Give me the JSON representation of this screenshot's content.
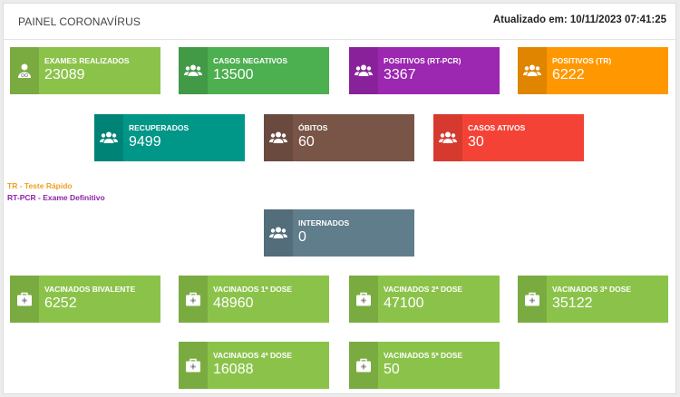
{
  "header": {
    "title": "PAINEL CORONAVÍRUS",
    "updated": "Atualizado em: 10/11/2023 07:41:25"
  },
  "cards": {
    "exames": {
      "label": "EXAMES REALIZADOS",
      "value": "23089",
      "color": "#8bc34a",
      "icon": "user-md-icon"
    },
    "negativos": {
      "label": "CASOS NEGATIVOS",
      "value": "13500",
      "color": "#4caf50",
      "icon": "users-icon"
    },
    "rtpcr": {
      "label": "POSITIVOS (RT-PCR)",
      "value": "3367",
      "color": "#9c27b0",
      "icon": "users-icon"
    },
    "tr": {
      "label": "POSITIVOS (TR)",
      "value": "6222",
      "color": "#ff9800",
      "icon": "users-icon"
    },
    "recuperados": {
      "label": "RECUPERADOS",
      "value": "9499",
      "color": "#009688",
      "icon": "users-icon"
    },
    "obitos": {
      "label": "ÓBITOS",
      "value": "60",
      "color": "#795548",
      "icon": "users-icon"
    },
    "ativos": {
      "label": "CASOS ATIVOS",
      "value": "30",
      "color": "#f44336",
      "icon": "users-icon"
    },
    "internados": {
      "label": "INTERNADOS",
      "value": "0",
      "color": "#607d8b",
      "icon": "users-icon"
    },
    "bivalente": {
      "label": "VACINADOS BIVALENTE",
      "value": "6252",
      "color": "#8bc34a",
      "icon": "medkit-icon"
    },
    "dose1": {
      "label": "VACINADOS 1ª DOSE",
      "value": "48960",
      "color": "#8bc34a",
      "icon": "medkit-icon"
    },
    "dose2": {
      "label": "VACINADOS 2ª DOSE",
      "value": "47100",
      "color": "#8bc34a",
      "icon": "medkit-icon"
    },
    "dose3": {
      "label": "VACINADOS 3ª DOSE",
      "value": "35122",
      "color": "#8bc34a",
      "icon": "medkit-icon"
    },
    "dose4": {
      "label": "VACINADOS 4ª DOSE",
      "value": "16088",
      "color": "#8bc34a",
      "icon": "medkit-icon"
    },
    "dose5": {
      "label": "VACINADOS 5ª DOSE",
      "value": "50",
      "color": "#8bc34a",
      "icon": "medkit-icon"
    }
  },
  "legend": {
    "tr": "TR - Teste Rápido",
    "rtpcr": "RT-PCR - Exame Definitivo"
  }
}
